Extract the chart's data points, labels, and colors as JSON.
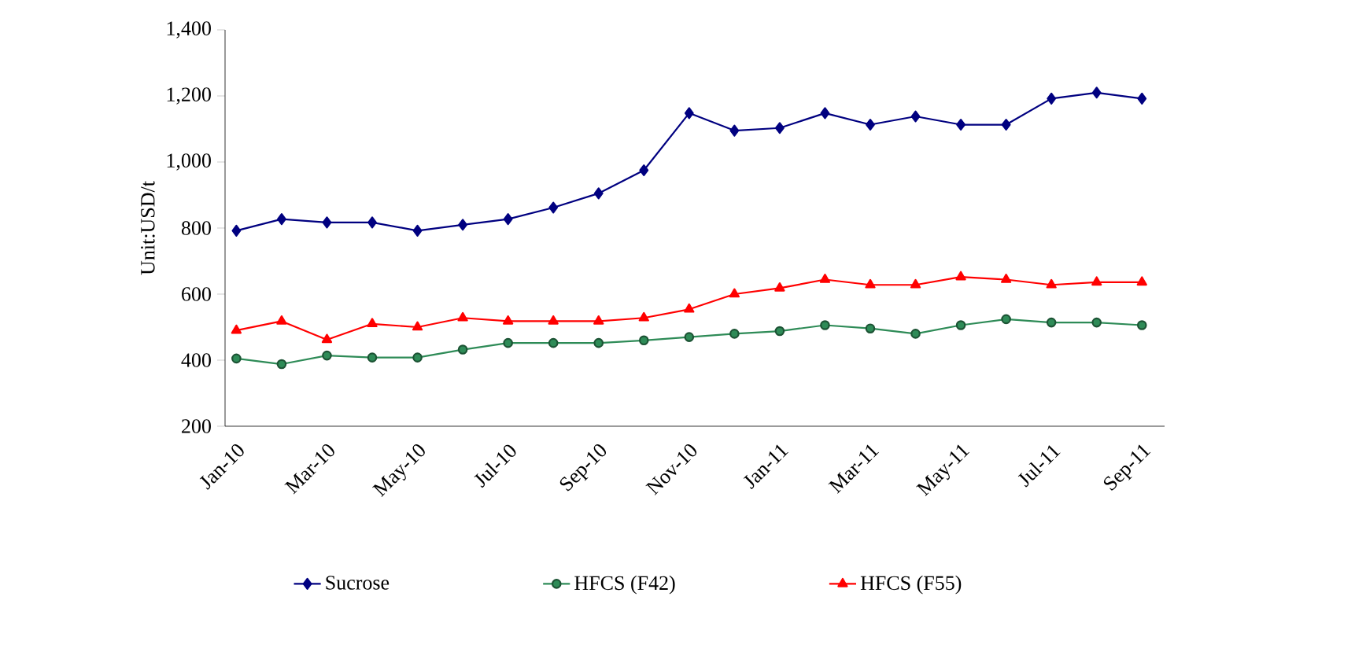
{
  "chart_data": {
    "type": "line",
    "ylabel": "Unit:USD/t",
    "categories": [
      "Jan-10",
      null,
      "Mar-10",
      null,
      "May-10",
      null,
      "Jul-10",
      null,
      "Sep-10",
      null,
      "Nov-10",
      null,
      "Jan-11",
      null,
      "Mar-11",
      null,
      "May-11",
      null,
      "Jul-11",
      null,
      "Sep-11"
    ],
    "series": [
      {
        "name": "Sucrose",
        "color": "#000080",
        "marker": "diamond",
        "values": [
          792,
          827,
          817,
          817,
          792,
          810,
          827,
          862,
          905,
          975,
          1148,
          1095,
          1103,
          1148,
          1113,
          1138,
          1113,
          1113,
          1192,
          1210,
          1192
        ]
      },
      {
        "name": "HFCS (F42)",
        "color": "#2e8b57",
        "marker": "circle",
        "values": [
          405,
          388,
          414,
          408,
          408,
          432,
          452,
          452,
          452,
          460,
          470,
          480,
          488,
          506,
          496,
          480,
          506,
          524,
          514,
          514,
          506
        ]
      },
      {
        "name": "HFCS (F55)",
        "color": "#ff0000",
        "marker": "triangle",
        "values": [
          490,
          518,
          462,
          510,
          500,
          528,
          518,
          518,
          518,
          528,
          554,
          600,
          618,
          644,
          628,
          628,
          652,
          644,
          628,
          636,
          636
        ]
      }
    ],
    "ylim": [
      200,
      1400
    ],
    "yticks": [
      200,
      400,
      600,
      800,
      {
        "value": 1000,
        "label": "1,000"
      },
      {
        "value": 1200,
        "label": "1,200"
      },
      {
        "value": 1400,
        "label": "1,400"
      }
    ],
    "legend": "bottom"
  }
}
